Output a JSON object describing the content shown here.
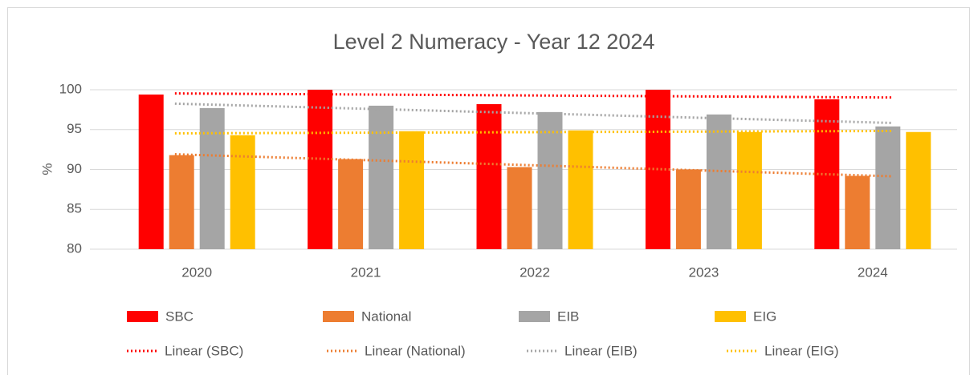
{
  "chart_data": {
    "type": "bar",
    "title": "Level 2 Numeracy - Year 12 2024",
    "y_label": "%",
    "categories": [
      "2020",
      "2021",
      "2022",
      "2023",
      "2024"
    ],
    "series": [
      {
        "name": "SBC",
        "color": "#ff0000",
        "values": [
          99.4,
          100,
          98.2,
          100,
          98.8
        ],
        "trendline": "Linear (SBC)"
      },
      {
        "name": "National",
        "color": "#ed7d31",
        "values": [
          91.8,
          91.3,
          90.3,
          90.0,
          89.2
        ],
        "trendline": "Linear (National)"
      },
      {
        "name": "EIB",
        "color": "#a5a5a5",
        "values": [
          97.7,
          98.0,
          97.2,
          96.9,
          95.4
        ],
        "trendline": "Linear (EIB)"
      },
      {
        "name": "EIG",
        "color": "#ffc000",
        "values": [
          94.3,
          94.8,
          94.9,
          94.7,
          94.7
        ],
        "trendline": "Linear (EIG)"
      }
    ],
    "ylim": [
      80,
      100
    ],
    "yticks": [
      80,
      85,
      90,
      95,
      100
    ],
    "grid": true,
    "legend": "bottom"
  }
}
